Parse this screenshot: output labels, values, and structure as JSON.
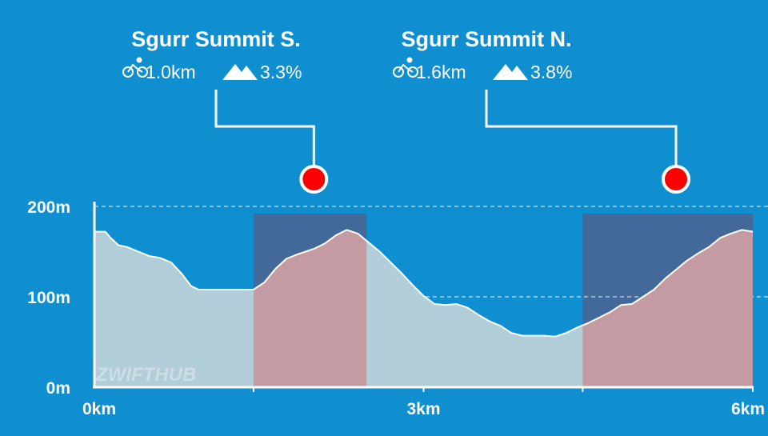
{
  "colors": {
    "background": "#0f8fd0",
    "profile_fill": "#b0cdd8",
    "profile_line": "#ffffff",
    "climb_fill": "#c49aa3",
    "climb_band": "#43689a",
    "marker": "#ff0000",
    "text": "#ffffff"
  },
  "watermark": "ZWIFTHUB",
  "chart_data": {
    "type": "area",
    "x_unit": "km",
    "y_unit": "m",
    "xlim": [
      0,
      6
    ],
    "ylim": [
      0,
      200
    ],
    "x_ticks": [
      {
        "value": 0,
        "label": "0km"
      },
      {
        "value": 3,
        "label": "3km"
      },
      {
        "value": 6,
        "label": "6km"
      }
    ],
    "y_ticks": [
      {
        "value": 0,
        "label": "0m",
        "gridline": false
      },
      {
        "value": 100,
        "label": "100m",
        "gridline": true
      },
      {
        "value": 200,
        "label": "200m",
        "gridline": true
      }
    ],
    "grid": "dashed horizontal at 100m and 200m",
    "elevation_profile": {
      "x": [
        0,
        0.1,
        0.15,
        0.22,
        0.3,
        0.4,
        0.5,
        0.6,
        0.7,
        0.8,
        0.88,
        0.95,
        1.05,
        1.2,
        1.35,
        1.45,
        1.55,
        1.65,
        1.75,
        1.85,
        2.0,
        2.1,
        2.2,
        2.3,
        2.4,
        2.5,
        2.6,
        2.7,
        2.8,
        2.9,
        3.0,
        3.1,
        3.2,
        3.3,
        3.4,
        3.5,
        3.6,
        3.7,
        3.8,
        3.9,
        4.0,
        4.1,
        4.2,
        4.3,
        4.4,
        4.5,
        4.6,
        4.7,
        4.8,
        4.9,
        5.0,
        5.1,
        5.2,
        5.3,
        5.4,
        5.5,
        5.6,
        5.7,
        5.8,
        5.9,
        6.0
      ],
      "elevation_m": [
        172,
        172,
        165,
        157,
        155,
        150,
        145,
        143,
        138,
        125,
        112,
        108,
        108,
        108,
        108,
        108,
        116,
        131,
        142,
        147,
        153,
        159,
        168,
        174,
        170,
        160,
        150,
        138,
        126,
        113,
        101,
        92,
        91,
        92,
        88,
        80,
        73,
        68,
        60,
        57,
        57,
        57,
        56,
        60,
        66,
        71,
        77,
        83,
        91,
        92,
        100,
        108,
        120,
        130,
        140,
        148,
        155,
        165,
        170,
        174,
        172
      ]
    },
    "climbs": [
      {
        "name": "Sgurr Summit S.",
        "length": "1.0km",
        "gradient": "3.3%",
        "start_km": 1.45,
        "end_km": 2.48,
        "marker_km": 2.0
      },
      {
        "name": "Sgurr Summit N.",
        "length": "1.6km",
        "gradient": "3.8%",
        "start_km": 4.45,
        "end_km": 6.0,
        "marker_km": 5.3
      }
    ]
  }
}
